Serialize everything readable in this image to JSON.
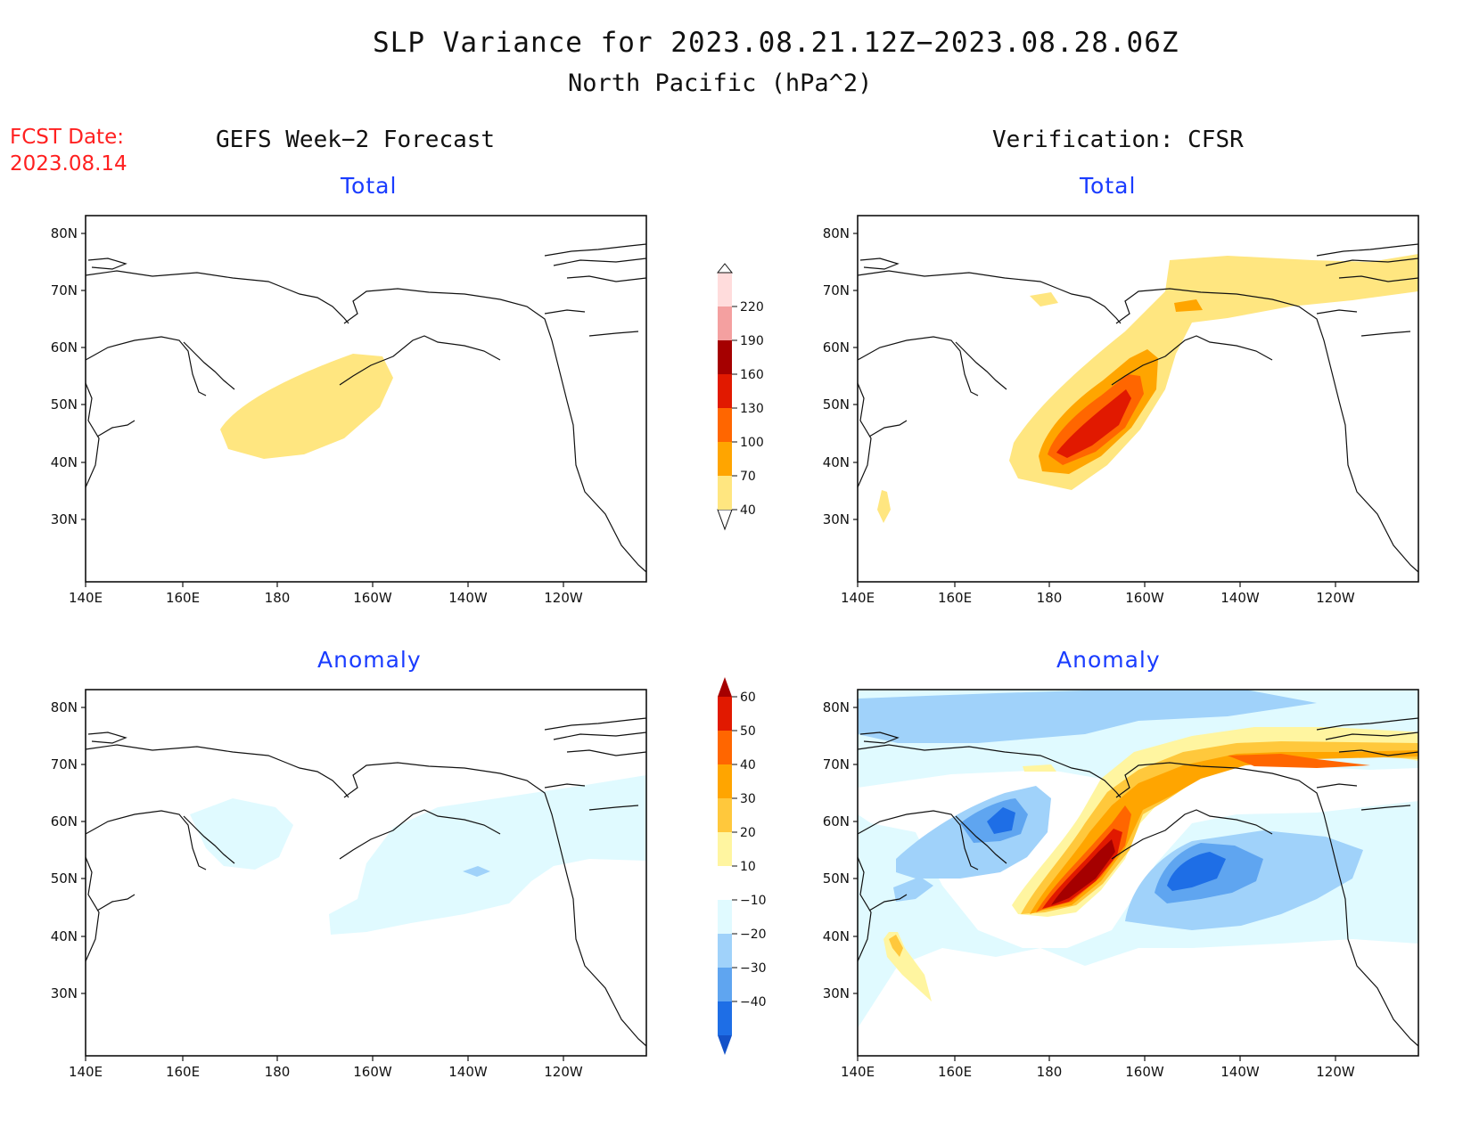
{
  "header": {
    "title": "SLP Variance for 2023.08.21.12Z−2023.08.28.06Z",
    "region_units": "North Pacific (hPa^2)",
    "fcst_label": "FCST Date:",
    "fcst_date": "2023.08.14"
  },
  "columns": {
    "left": "GEFS Week−2 Forecast",
    "right": "Verification: CFSR"
  },
  "panels": {
    "top_left": "Total",
    "top_right": "Total",
    "bottom_left": "Anomaly",
    "bottom_right": "Anomaly"
  },
  "axes": {
    "lat_labels": [
      "80N",
      "70N",
      "60N",
      "50N",
      "40N",
      "30N"
    ],
    "lon_labels": [
      "140E",
      "160E",
      "180",
      "160W",
      "140W",
      "120W"
    ]
  },
  "colorbars": {
    "total": {
      "labels": [
        "40",
        "70",
        "100",
        "130",
        "160",
        "190",
        "220"
      ],
      "colors": [
        "#ffe680",
        "#ffa500",
        "#ff6600",
        "#e11900",
        "#a50000",
        "#f4a0a0",
        "#ffdcdc"
      ]
    },
    "anomaly": {
      "labels": [
        "60",
        "50",
        "40",
        "30",
        "20",
        "10",
        "−10",
        "−20",
        "−30",
        "−40"
      ],
      "colors": [
        "#a50000",
        "#e11900",
        "#ff6600",
        "#ffa500",
        "#ffc83c",
        "#fff5a0",
        "#ffffff",
        "#e0faff",
        "#a0d2fa",
        "#5fa5f0",
        "#1e6ee6",
        "#1452c8"
      ]
    }
  }
}
